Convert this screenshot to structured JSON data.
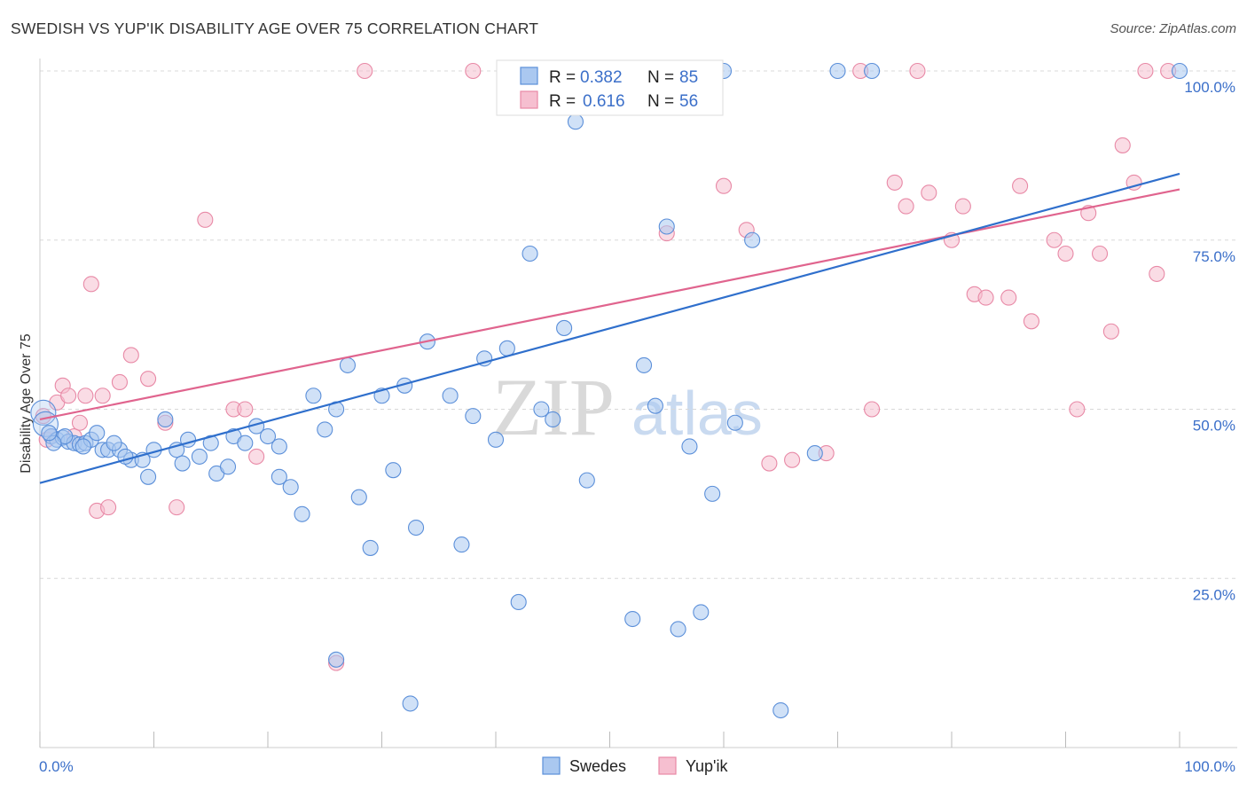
{
  "header": {
    "title": "SWEDISH VS YUP'IK DISABILITY AGE OVER 75 CORRELATION CHART",
    "source": "Source: ZipAtlas.com"
  },
  "legend": {
    "r_label": "R =",
    "n_label": "N =",
    "swedes": {
      "r": "0.382",
      "n": "85"
    },
    "yupik": {
      "r": "0.616",
      "n": "56"
    }
  },
  "bottom_legend": {
    "swedes": "Swedes",
    "yupik": "Yup'ik"
  },
  "watermark": {
    "zip": "ZIP",
    "atlas": "atlas"
  },
  "colors": {
    "swedes_fill": "#aac8f0",
    "swedes_stroke": "#5b8fd9",
    "swedes_line": "#2f6fcc",
    "yupik_fill": "#f6bfd0",
    "yupik_stroke": "#e889a6",
    "yupik_line": "#e0648e",
    "grid": "#d8d8d8",
    "axis_text": "#3b6fc9"
  },
  "chart_data": {
    "type": "scatter",
    "title": "SWEDISH VS YUP'IK DISABILITY AGE OVER 75 CORRELATION CHART",
    "xlabel": "",
    "ylabel": "Disability Age Over 75",
    "xlim": [
      0,
      100
    ],
    "ylim": [
      0,
      100
    ],
    "x_tick_labels": [
      "0.0%",
      "100.0%"
    ],
    "y_tick_labels": [
      "25.0%",
      "50.0%",
      "75.0%",
      "100.0%"
    ],
    "y_ticks": [
      25,
      50,
      75,
      100
    ],
    "grid": "horizontal dashed",
    "series": [
      {
        "name": "Swedes",
        "r": 0.382,
        "n": 85,
        "trend": [
          [
            0,
            39.1
          ],
          [
            100,
            84.8
          ]
        ],
        "points": [
          [
            0.3,
            49.5
          ],
          [
            0.5,
            47.8
          ],
          [
            1.0,
            46.0
          ],
          [
            1.5,
            45.5
          ],
          [
            2.0,
            45.8
          ],
          [
            2.5,
            45.2
          ],
          [
            3.0,
            45.0
          ],
          [
            3.5,
            44.8
          ],
          [
            4.0,
            45.0
          ],
          [
            4.5,
            45.5
          ],
          [
            5.0,
            46.5
          ],
          [
            5.5,
            44.0
          ],
          [
            6.0,
            44.0
          ],
          [
            7.0,
            44.0
          ],
          [
            8.0,
            42.5
          ],
          [
            9.0,
            42.5
          ],
          [
            10.0,
            44.0
          ],
          [
            11.0,
            48.5
          ],
          [
            12.0,
            44.0
          ],
          [
            13.0,
            45.5
          ],
          [
            14.0,
            43.0
          ],
          [
            15.0,
            45.0
          ],
          [
            15.5,
            40.5
          ],
          [
            17.0,
            46.0
          ],
          [
            18.0,
            45.0
          ],
          [
            19.0,
            47.5
          ],
          [
            20.0,
            46.0
          ],
          [
            21.0,
            44.5
          ],
          [
            22.0,
            38.5
          ],
          [
            23.0,
            34.5
          ],
          [
            24.0,
            52.0
          ],
          [
            25.0,
            47.0
          ],
          [
            26.0,
            50.0
          ],
          [
            27.0,
            56.5
          ],
          [
            28.0,
            37.0
          ],
          [
            29.0,
            29.5
          ],
          [
            30.0,
            52.0
          ],
          [
            31.0,
            41.0
          ],
          [
            32.0,
            53.5
          ],
          [
            33.0,
            32.5
          ],
          [
            34.0,
            60.0
          ],
          [
            36.0,
            52.0
          ],
          [
            37.0,
            30.0
          ],
          [
            38.0,
            49.0
          ],
          [
            39.0,
            57.5
          ],
          [
            40.0,
            45.5
          ],
          [
            41.0,
            59.0
          ],
          [
            42.0,
            21.5
          ],
          [
            43.0,
            73.0
          ],
          [
            44.0,
            50.0
          ],
          [
            45.0,
            48.5
          ],
          [
            46.0,
            62.0
          ],
          [
            47.0,
            92.5
          ],
          [
            48.0,
            39.5
          ],
          [
            49.0,
            100
          ],
          [
            50.0,
            100
          ],
          [
            51.0,
            100
          ],
          [
            52.0,
            19.0
          ],
          [
            53.0,
            56.5
          ],
          [
            54.0,
            50.5
          ],
          [
            55.0,
            77.0
          ],
          [
            56.0,
            17.5
          ],
          [
            57.0,
            44.5
          ],
          [
            58.0,
            20.0
          ],
          [
            59.0,
            37.5
          ],
          [
            60.0,
            100
          ],
          [
            61.0,
            48.0
          ],
          [
            62.5,
            75.0
          ],
          [
            65.0,
            5.5
          ],
          [
            68.0,
            43.5
          ],
          [
            70.0,
            100
          ],
          [
            73.0,
            100
          ],
          [
            100,
            100
          ],
          [
            32.5,
            6.5
          ],
          [
            26.0,
            13.0
          ],
          [
            21.0,
            40.0
          ],
          [
            16.5,
            41.5
          ],
          [
            12.5,
            42.0
          ],
          [
            9.5,
            40.0
          ],
          [
            7.5,
            43.0
          ],
          [
            6.5,
            45.0
          ],
          [
            3.8,
            44.5
          ],
          [
            2.2,
            46.0
          ],
          [
            1.2,
            45.0
          ],
          [
            0.8,
            46.5
          ]
        ]
      },
      {
        "name": "Yup'ik",
        "r": 0.616,
        "n": 56,
        "trend": [
          [
            0,
            48.5
          ],
          [
            100,
            82.5
          ]
        ],
        "points": [
          [
            0.3,
            49.0
          ],
          [
            0.6,
            45.5
          ],
          [
            1.0,
            46.0
          ],
          [
            1.5,
            51.0
          ],
          [
            2.0,
            53.5
          ],
          [
            2.5,
            52.0
          ],
          [
            3.0,
            46.0
          ],
          [
            3.5,
            48.0
          ],
          [
            4.0,
            52.0
          ],
          [
            4.5,
            68.5
          ],
          [
            5.0,
            35.0
          ],
          [
            5.5,
            52.0
          ],
          [
            6.0,
            35.5
          ],
          [
            7.0,
            54.0
          ],
          [
            8.0,
            58.0
          ],
          [
            9.5,
            54.5
          ],
          [
            11.0,
            48.0
          ],
          [
            12.0,
            35.5
          ],
          [
            14.5,
            78.0
          ],
          [
            17.0,
            50.0
          ],
          [
            18.0,
            50.0
          ],
          [
            19.0,
            43.0
          ],
          [
            26.0,
            12.5
          ],
          [
            28.5,
            100
          ],
          [
            38.0,
            100
          ],
          [
            55.0,
            76.0
          ],
          [
            58.0,
            100
          ],
          [
            60.0,
            83.0
          ],
          [
            62.0,
            76.5
          ],
          [
            64.0,
            42.0
          ],
          [
            66.0,
            42.5
          ],
          [
            69.0,
            43.5
          ],
          [
            72.0,
            100
          ],
          [
            73.0,
            50.0
          ],
          [
            75.0,
            83.5
          ],
          [
            76.0,
            80.0
          ],
          [
            77.0,
            100
          ],
          [
            78.0,
            82.0
          ],
          [
            80.0,
            75.0
          ],
          [
            81.0,
            80.0
          ],
          [
            82.0,
            67.0
          ],
          [
            83.0,
            66.5
          ],
          [
            85.0,
            66.5
          ],
          [
            86.0,
            83.0
          ],
          [
            87.0,
            63.0
          ],
          [
            89.0,
            75.0
          ],
          [
            90.0,
            73.0
          ],
          [
            91.0,
            50.0
          ],
          [
            92.0,
            79.0
          ],
          [
            93.0,
            73.0
          ],
          [
            94.0,
            61.5
          ],
          [
            95.0,
            89.0
          ],
          [
            96.0,
            83.5
          ],
          [
            97.0,
            100
          ],
          [
            98.0,
            70.0
          ],
          [
            99.0,
            100
          ]
        ]
      }
    ]
  }
}
